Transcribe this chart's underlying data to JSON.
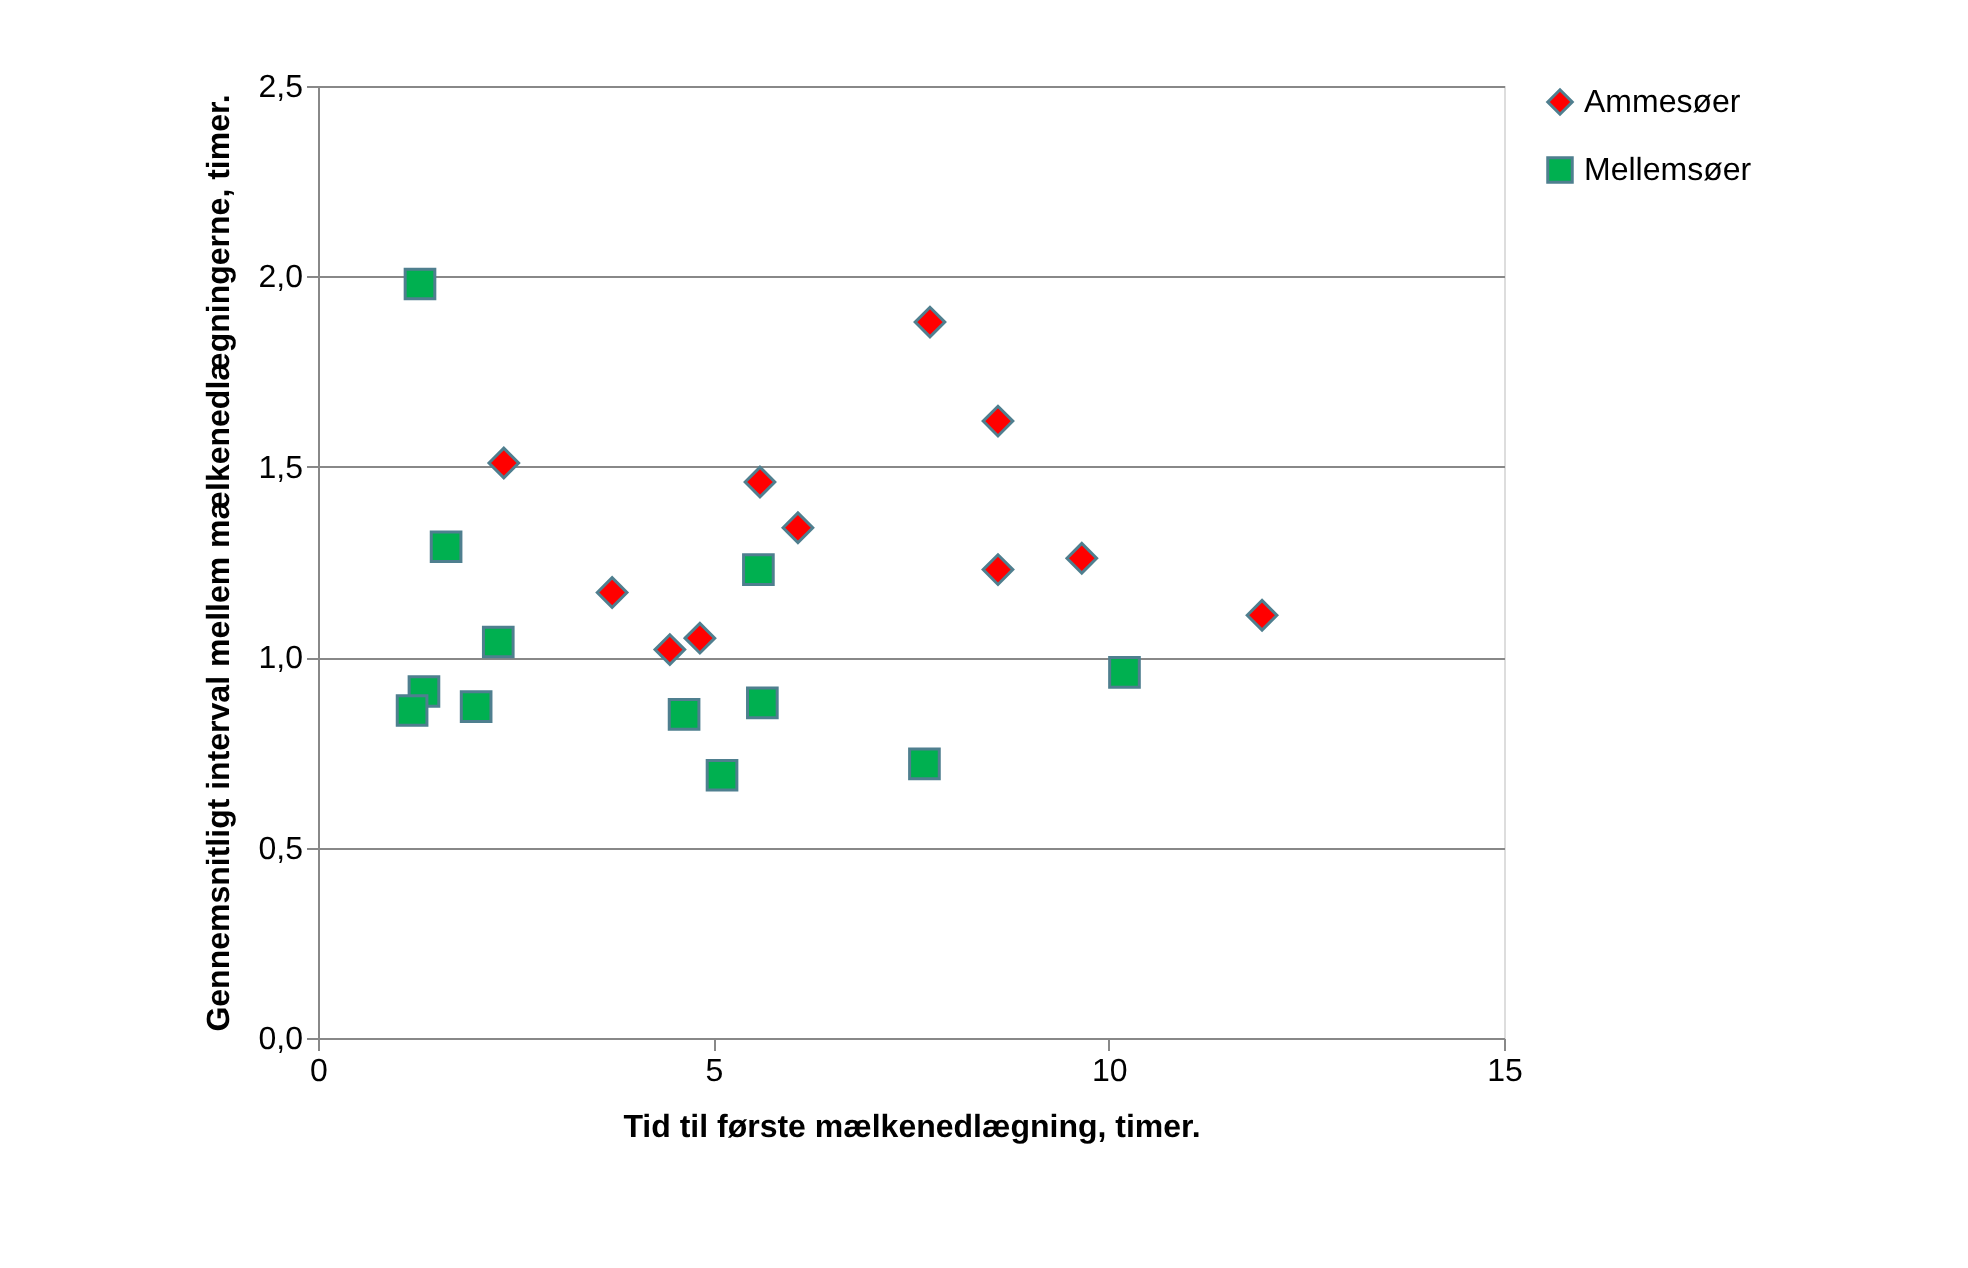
{
  "chart_data": {
    "type": "scatter",
    "xlabel": "Tid til første mælkenedlægning, timer.",
    "ylabel": "Gennemsnitligt interval mellem mælkenedlægningerne, timer.",
    "xlim": [
      0,
      15
    ],
    "xticks": [
      0,
      5,
      10,
      15
    ],
    "ylim": [
      0,
      2.5
    ],
    "yticks": [
      {
        "value": 0,
        "label": "0,0"
      },
      {
        "value": 0.5,
        "label": "0,5"
      },
      {
        "value": 1,
        "label": "1,0"
      },
      {
        "value": 1.5,
        "label": "1,5"
      },
      {
        "value": 2,
        "label": "2,0"
      },
      {
        "value": 2.5,
        "label": "2,5"
      }
    ],
    "grid": "y",
    "legend": "right",
    "series": [
      {
        "name": "Ammesøer",
        "color": "#ff0000",
        "marker": "diamond",
        "x": [
          2.35,
          3.72,
          4.45,
          4.83,
          5.59,
          6.07,
          7.74,
          8.6,
          8.6,
          9.66,
          11.94
        ],
        "values": [
          1.51,
          1.17,
          1.02,
          1.05,
          1.46,
          1.34,
          1.88,
          1.62,
          1.23,
          1.26,
          1.11
        ]
      },
      {
        "name": "Mellemsøer",
        "color": "#00b050",
        "marker": "square",
        "x": [
          1.29,
          1.62,
          2.28,
          1.34,
          1.19,
          2.0,
          4.63,
          5.57,
          5.62,
          5.11,
          7.67,
          10.2
        ],
        "values": [
          1.98,
          1.29,
          1.04,
          0.91,
          0.86,
          0.87,
          0.85,
          1.23,
          0.88,
          0.69,
          0.72,
          0.96
        ]
      }
    ]
  }
}
